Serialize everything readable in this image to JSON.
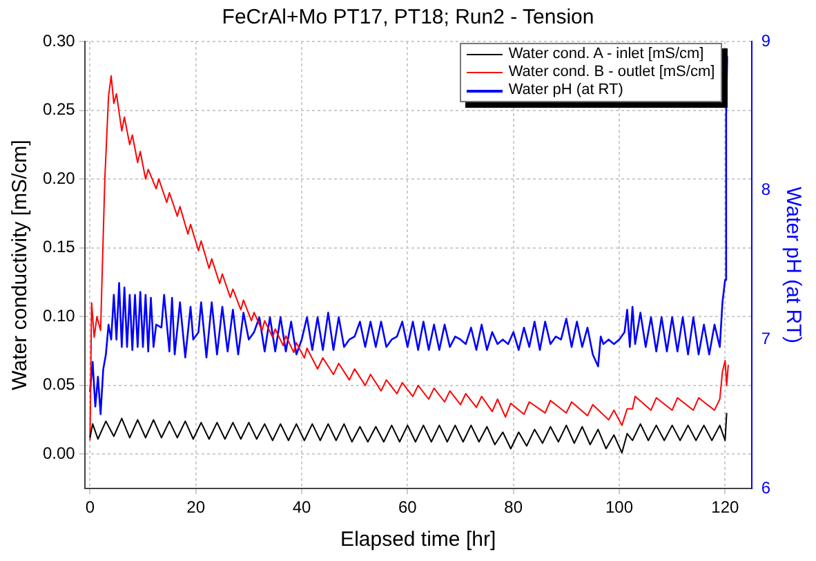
{
  "chart_data": {
    "type": "line",
    "title": "FeCrAl+Mo PT17, PT18; Run2 - Tension",
    "xlabel": "Elapsed time [hr]",
    "ylabel": "Water conductivity [mS/cm]",
    "y2label": "Water pH (at RT)",
    "xlim": [
      -1,
      125
    ],
    "xticks": [
      0,
      20,
      40,
      60,
      80,
      100,
      120
    ],
    "ylim": [
      -0.025,
      0.3
    ],
    "yticks": [
      {
        "value": 0,
        "label": "0.00"
      },
      {
        "value": 0.05,
        "label": "0.05"
      },
      {
        "value": 0.1,
        "label": "0.10"
      },
      {
        "value": 0.15,
        "label": "0.15"
      },
      {
        "value": 0.2,
        "label": "0.20"
      },
      {
        "value": 0.25,
        "label": "0.25"
      },
      {
        "value": 0.3,
        "label": "0.30"
      }
    ],
    "y2lim": [
      6,
      9
    ],
    "y2ticks": [
      6,
      7,
      8,
      9
    ],
    "grid": true,
    "legend": "top right",
    "marker": "none",
    "line_style": "solid",
    "series": [
      {
        "name": "Water cond. A - inlet [mS/cm]",
        "color": "#000000",
        "x": [
          0,
          0.5,
          1.5,
          3,
          4.5,
          6,
          7.5,
          9,
          10.5,
          12,
          13.5,
          15,
          16.5,
          18,
          19.5,
          21,
          22.5,
          24,
          25.5,
          27,
          28.5,
          30,
          31.5,
          33,
          34.5,
          36,
          37.5,
          39,
          40.5,
          42,
          43.5,
          45,
          46.5,
          48,
          49.5,
          51,
          52.5,
          54,
          55.5,
          57,
          58.5,
          60,
          61.5,
          63,
          64.5,
          66,
          67.5,
          69,
          70.5,
          72,
          73.5,
          75,
          76.5,
          78,
          79.5,
          81,
          82.5,
          84,
          85.5,
          87,
          88.5,
          90,
          91.5,
          93,
          94.5,
          96,
          97.5,
          99,
          100.5,
          101.5,
          102.5,
          104,
          105.5,
          107,
          108.5,
          110,
          111.5,
          113,
          114.5,
          116,
          117.5,
          119,
          120,
          120.3
        ],
        "values": [
          0.012,
          0.022,
          0.011,
          0.024,
          0.013,
          0.026,
          0.012,
          0.025,
          0.012,
          0.025,
          0.012,
          0.024,
          0.012,
          0.024,
          0.011,
          0.023,
          0.011,
          0.023,
          0.011,
          0.023,
          0.011,
          0.023,
          0.011,
          0.022,
          0.01,
          0.022,
          0.01,
          0.022,
          0.01,
          0.022,
          0.01,
          0.022,
          0.01,
          0.022,
          0.009,
          0.02,
          0.009,
          0.02,
          0.009,
          0.021,
          0.009,
          0.021,
          0.009,
          0.021,
          0.009,
          0.021,
          0.009,
          0.021,
          0.009,
          0.021,
          0.009,
          0.02,
          0.007,
          0.016,
          0.004,
          0.016,
          0.006,
          0.018,
          0.008,
          0.02,
          0.009,
          0.021,
          0.008,
          0.02,
          0.007,
          0.018,
          0.004,
          0.014,
          0.001,
          0.015,
          0.01,
          0.022,
          0.01,
          0.021,
          0.01,
          0.021,
          0.01,
          0.021,
          0.01,
          0.021,
          0.01,
          0.021,
          0.01,
          0.03
        ]
      },
      {
        "name": "Water cond. B - outlet [mS/cm]",
        "color": "#ff0000",
        "x": [
          0,
          0.3,
          0.8,
          1.3,
          2,
          2.8,
          3.5,
          4,
          4.5,
          5,
          6,
          6.5,
          7.5,
          8,
          9,
          9.5,
          10.5,
          11,
          12.5,
          13,
          14.5,
          15,
          16.5,
          17,
          18.5,
          19,
          20.5,
          21,
          22.5,
          23,
          24.5,
          25,
          26.5,
          27,
          28.5,
          29,
          30.5,
          31,
          32.5,
          33,
          34.5,
          35,
          36.5,
          37,
          38.5,
          39,
          40.5,
          41,
          43,
          44,
          46,
          47,
          49,
          50,
          52,
          53,
          55,
          56,
          58,
          59,
          61,
          62,
          64,
          65,
          67,
          68,
          70,
          71,
          73,
          74,
          76,
          77,
          78.5,
          79.5,
          82,
          83,
          86,
          87,
          90,
          91,
          94,
          95,
          98,
          99,
          100.5,
          101.5,
          102.5,
          103,
          106,
          107,
          110,
          111,
          114,
          115,
          118,
          119,
          119.5,
          120,
          120.3,
          120.6
        ],
        "values": [
          0.01,
          0.11,
          0.085,
          0.1,
          0.09,
          0.2,
          0.26,
          0.275,
          0.255,
          0.262,
          0.235,
          0.245,
          0.225,
          0.232,
          0.212,
          0.22,
          0.2,
          0.207,
          0.193,
          0.2,
          0.183,
          0.19,
          0.173,
          0.18,
          0.16,
          0.167,
          0.148,
          0.155,
          0.135,
          0.142,
          0.124,
          0.131,
          0.114,
          0.12,
          0.105,
          0.112,
          0.097,
          0.103,
          0.09,
          0.097,
          0.085,
          0.091,
          0.079,
          0.086,
          0.074,
          0.081,
          0.07,
          0.077,
          0.062,
          0.07,
          0.058,
          0.066,
          0.054,
          0.062,
          0.05,
          0.058,
          0.046,
          0.054,
          0.044,
          0.052,
          0.042,
          0.05,
          0.04,
          0.048,
          0.038,
          0.046,
          0.036,
          0.044,
          0.034,
          0.042,
          0.031,
          0.04,
          0.027,
          0.037,
          0.029,
          0.038,
          0.03,
          0.039,
          0.03,
          0.038,
          0.028,
          0.036,
          0.025,
          0.032,
          0.021,
          0.033,
          0.033,
          0.042,
          0.032,
          0.041,
          0.032,
          0.041,
          0.032,
          0.041,
          0.032,
          0.04,
          0.06,
          0.068,
          0.05,
          0.065
        ]
      },
      {
        "name": "Water pH (at RT)",
        "color": "#0000ff",
        "axis": "y2",
        "x": [
          0,
          0.5,
          1,
          1.5,
          2,
          2.5,
          3,
          3.5,
          4,
          4.5,
          5,
          5.5,
          6,
          6.5,
          7,
          7.5,
          8,
          8.5,
          9,
          9.5,
          10,
          10.5,
          11,
          11.5,
          12,
          12.5,
          13.5,
          14,
          15,
          15.5,
          16,
          17,
          18,
          19,
          19.5,
          20.5,
          21,
          22,
          23,
          24,
          25,
          26,
          27,
          28,
          29,
          30,
          31,
          32,
          33,
          34,
          35,
          36,
          37,
          38,
          39,
          40,
          41,
          42,
          43,
          44,
          45,
          46,
          47,
          48,
          49,
          50,
          51,
          52,
          53,
          54,
          55,
          56,
          57,
          58,
          59,
          60,
          61,
          62,
          63,
          64,
          65,
          66,
          67,
          68,
          69,
          70,
          71,
          72,
          73,
          74,
          75,
          76,
          77,
          78,
          79,
          80,
          81,
          82,
          83,
          84,
          85,
          86,
          87,
          88,
          89,
          90,
          91,
          92,
          93,
          94,
          95,
          96,
          96.5,
          97,
          98,
          99,
          100,
          101,
          101.5,
          102,
          102.5,
          103,
          104,
          105,
          106,
          107,
          108,
          109,
          110,
          111,
          112,
          113,
          114,
          115,
          116,
          117,
          118,
          119,
          119.5,
          120,
          120.2,
          120.4
        ],
        "values": [
          6.65,
          6.85,
          6.55,
          6.75,
          6.5,
          6.8,
          6.9,
          7.1,
          7.0,
          7.3,
          7.0,
          7.38,
          6.95,
          7.35,
          6.95,
          7.3,
          6.93,
          7.3,
          6.95,
          7.32,
          6.95,
          7.3,
          6.92,
          7.28,
          6.95,
          7.1,
          7.08,
          7.3,
          6.92,
          7.28,
          6.9,
          7.25,
          6.88,
          7.22,
          7.0,
          7.05,
          7.25,
          6.88,
          7.25,
          6.9,
          7.22,
          6.92,
          7.2,
          6.9,
          7.18,
          7.0,
          7.05,
          7.15,
          6.92,
          7.15,
          6.92,
          7.15,
          6.92,
          7.12,
          6.9,
          7.0,
          7.15,
          6.93,
          7.15,
          6.93,
          7.18,
          6.93,
          7.15,
          6.95,
          7.0,
          7.02,
          7.12,
          6.95,
          7.12,
          6.95,
          7.12,
          6.95,
          7.0,
          7.02,
          7.12,
          6.95,
          7.12,
          6.93,
          7.12,
          6.93,
          7.1,
          6.93,
          7.1,
          6.95,
          7.02,
          7.0,
          6.97,
          7.08,
          6.93,
          7.1,
          6.93,
          7.05,
          6.97,
          7.0,
          6.97,
          7.05,
          6.93,
          7.08,
          6.95,
          7.12,
          6.93,
          7.12,
          6.97,
          7.02,
          7.0,
          7.14,
          6.95,
          7.12,
          6.95,
          7.08,
          6.9,
          6.82,
          7.02,
          6.97,
          7.0,
          6.97,
          7.0,
          7.05,
          7.2,
          6.95,
          7.22,
          6.97,
          7.18,
          6.95,
          7.15,
          6.92,
          7.15,
          6.92,
          7.15,
          6.92,
          7.15,
          6.9,
          7.15,
          6.9,
          7.1,
          6.9,
          7.1,
          6.95,
          7.25,
          7.4,
          8.5,
          8.9
        ]
      }
    ]
  }
}
